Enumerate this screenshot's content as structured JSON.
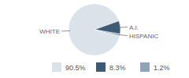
{
  "chart_data": {
    "type": "pie",
    "categories": [
      "WHITE",
      "A.I.",
      "HISPANIC"
    ],
    "values": [
      90.5,
      8.3,
      1.2
    ],
    "value_labels": [
      "90.5%",
      "8.3%",
      "1.2%"
    ],
    "colors": [
      "#dbe2ea",
      "#3e5b75",
      "#8fa4b7"
    ],
    "legend": "bottom"
  }
}
